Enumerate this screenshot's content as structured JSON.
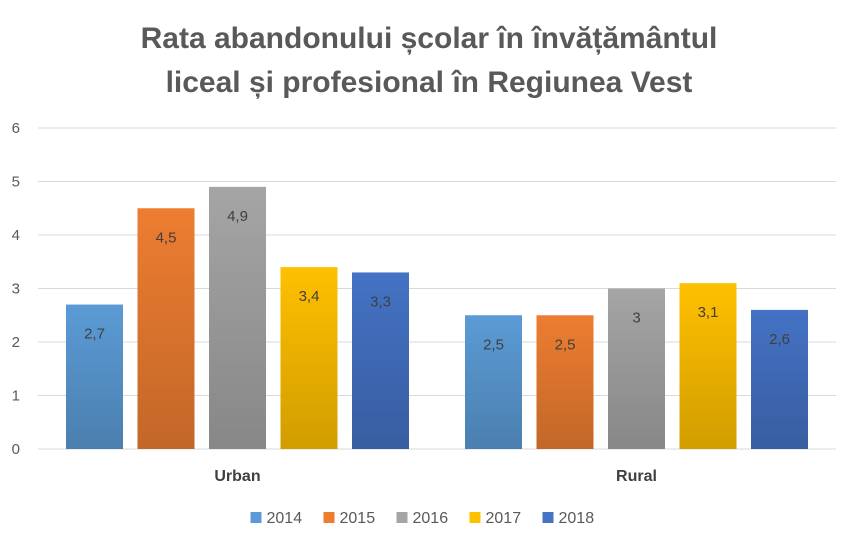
{
  "chart_data": {
    "type": "bar",
    "title": "Rata abandonului școlar în învățământul liceal și profesional în Regiunea Vest",
    "title_lines": [
      "Rata abandonului școlar în învățământul",
      "liceal și profesional în Regiunea Vest"
    ],
    "categories": [
      "Urban",
      "Rural"
    ],
    "series": [
      {
        "name": "2014",
        "color": "#5b9bd5",
        "values": [
          2.7,
          2.5
        ],
        "labels": [
          "2,7",
          "2,5"
        ]
      },
      {
        "name": "2015",
        "color": "#ed7d31",
        "values": [
          4.5,
          2.5
        ],
        "labels": [
          "4,5",
          "2,5"
        ]
      },
      {
        "name": "2016",
        "color": "#a5a5a5",
        "values": [
          4.9,
          3.0
        ],
        "labels": [
          "4,9",
          "3"
        ]
      },
      {
        "name": "2017",
        "color": "#ffc000",
        "values": [
          3.4,
          3.1
        ],
        "labels": [
          "3,4",
          "3,1"
        ]
      },
      {
        "name": "2018",
        "color": "#4472c4",
        "values": [
          3.3,
          2.6
        ],
        "labels": [
          "3,3",
          "2,6"
        ]
      }
    ],
    "ylim": [
      0,
      6
    ],
    "yticks": [
      "0",
      "1",
      "2",
      "3",
      "4",
      "5",
      "6"
    ],
    "xlabel": "",
    "ylabel": "",
    "grid": true,
    "legend_position": "bottom"
  }
}
